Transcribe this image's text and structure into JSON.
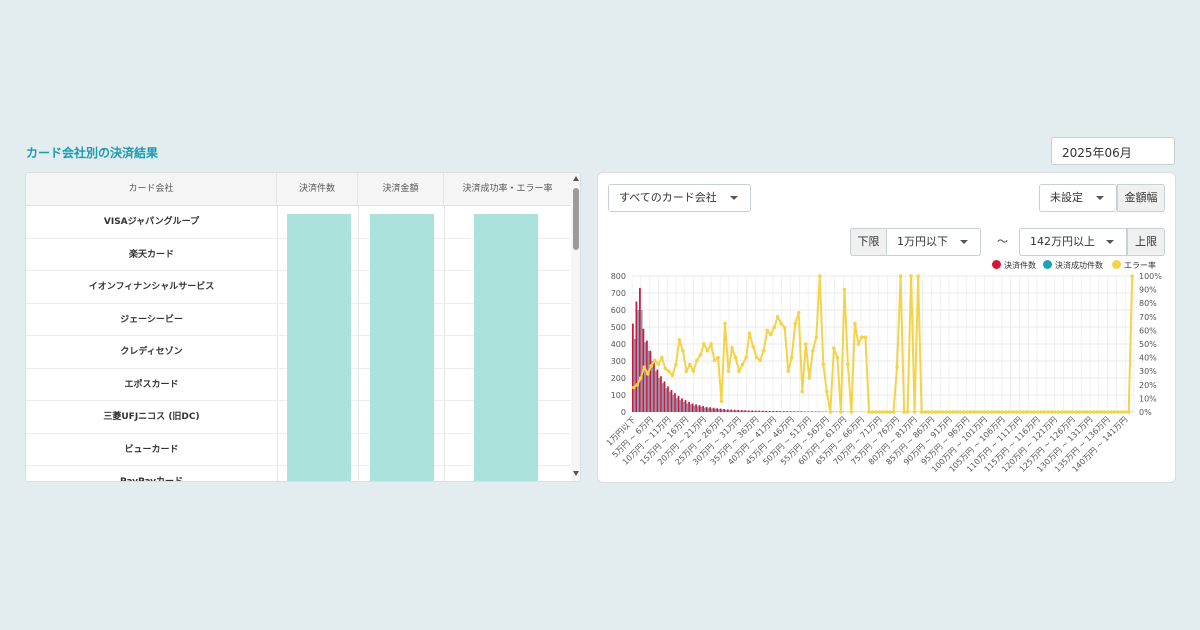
{
  "page": {
    "section_title": "カード会社別の決済結果",
    "month": "2025年06月"
  },
  "table": {
    "headers": [
      "カード会社",
      "決済件数",
      "決済金額",
      "決済成功率・エラー率"
    ],
    "rows": [
      "VISAジャパングループ",
      "楽天カード",
      "イオンフィナンシャルサービス",
      "ジェーシービー",
      "クレディセゾン",
      "エポスカード",
      "三菱UFJニコス (旧DC)",
      "ビューカード",
      "PayPayカード"
    ]
  },
  "filters": {
    "company": "すべてのカード会社",
    "amount_mode": "未設定",
    "amount_btn": "金額幅",
    "lower_label": "下限",
    "lower_value": "1万円以下",
    "tilde": "～",
    "upper_value": "142万円以上",
    "upper_label": "上限"
  },
  "colors": {
    "accent": "#1a9bb0",
    "count": "#d0163a",
    "success": "#1aa3b5",
    "error": "#f2d34a",
    "bar_cell": "#ace2dc"
  },
  "chart_data": {
    "type": "bar",
    "legend_position": "top-right",
    "series": [
      {
        "name": "決済件数",
        "type": "bar",
        "axis": "left"
      },
      {
        "name": "決済成功件数",
        "type": "bar",
        "axis": "left"
      },
      {
        "name": "エラー率",
        "type": "line",
        "axis": "right"
      }
    ],
    "y_left": {
      "ylim": [
        0,
        800
      ],
      "ticks": [
        "0",
        "100",
        "200",
        "300",
        "400",
        "500",
        "600",
        "700",
        "800"
      ]
    },
    "y_right": {
      "ylim": [
        0,
        100
      ],
      "ticks": [
        "0%",
        "10%",
        "20%",
        "30%",
        "40%",
        "50%",
        "60%",
        "70%",
        "80%",
        "90%",
        "100%"
      ]
    },
    "x_labels": [
      "1万円以下",
      "5万円 ~ 6万円",
      "10万円 ~ 11万円",
      "15万円 ~ 16万円",
      "20万円 ~ 21万円",
      "25万円 ~ 26万円",
      "30万円 ~ 31万円",
      "35万円 ~ 36万円",
      "40万円 ~ 41万円",
      "45万円 ~ 46万円",
      "50万円 ~ 51万円",
      "55万円 ~ 56万円",
      "60万円 ~ 61万円",
      "65万円 ~ 66万円",
      "70万円 ~ 71万円",
      "75万円 ~ 76万円",
      "80万円 ~ 81万円",
      "85万円 ~ 86万円",
      "90万円 ~ 91万円",
      "95万円 ~ 96万円",
      "100万円 ~ 101万円",
      "105万円 ~ 106万円",
      "110万円 ~ 111万円",
      "115万円 ~ 116万円",
      "120万円 ~ 121万円",
      "125万円 ~ 126万円",
      "130万円 ~ 131万円",
      "135万円 ~ 136万円",
      "140万円 ~ 141万円"
    ],
    "count": [
      520,
      650,
      730,
      490,
      420,
      360,
      300,
      250,
      210,
      180,
      150,
      130,
      110,
      95,
      80,
      70,
      60,
      50,
      45,
      40,
      35,
      30,
      28,
      25,
      22,
      20,
      18,
      15,
      14,
      13,
      12,
      11,
      10,
      9,
      9,
      8,
      8,
      7,
      7,
      6,
      6,
      6,
      5,
      5,
      5,
      4,
      4,
      4,
      4,
      3,
      3,
      3,
      3,
      3,
      2,
      2,
      2,
      2,
      2,
      2,
      2,
      1,
      1,
      1,
      1,
      1,
      1,
      1,
      1,
      1,
      1,
      1,
      1,
      1,
      1,
      1,
      1,
      1,
      1,
      1,
      1,
      1,
      1,
      1,
      1,
      1,
      1,
      1,
      1,
      1,
      1,
      1,
      1,
      1,
      1,
      1,
      1,
      1,
      1,
      1,
      1,
      1,
      1,
      1,
      1,
      1,
      1,
      1,
      1,
      1,
      1,
      1,
      1,
      1,
      1,
      1,
      1,
      1,
      1,
      1,
      1,
      1,
      1,
      1,
      1,
      1,
      1,
      1,
      1,
      1,
      1,
      1,
      1,
      1,
      1,
      1,
      1,
      1,
      1,
      1,
      1,
      1,
      1
    ],
    "success": [
      430,
      600,
      600,
      410,
      360,
      300,
      240,
      200,
      170,
      140,
      120,
      100,
      80,
      70,
      60,
      50,
      45,
      38,
      34,
      30,
      25,
      22,
      20,
      18,
      16,
      14,
      12,
      10,
      9,
      9,
      8,
      8,
      7,
      6,
      6,
      5,
      5,
      5,
      4,
      4,
      4,
      4,
      3,
      3,
      3,
      3,
      2,
      2,
      2,
      2,
      2,
      2,
      2,
      1,
      1,
      1,
      1,
      1,
      1,
      1,
      1,
      1,
      1,
      1,
      1,
      1,
      1,
      1,
      1,
      1,
      1,
      1,
      1,
      1,
      1,
      1,
      1,
      1,
      1,
      1,
      1,
      1,
      1,
      1,
      1,
      1,
      1,
      1,
      1,
      1,
      1,
      1,
      1,
      1,
      1,
      1,
      1,
      1,
      1,
      1,
      1,
      1,
      1,
      1,
      1,
      1,
      1,
      1,
      1,
      1,
      1,
      1,
      1,
      1,
      1,
      1,
      1,
      1,
      1,
      1,
      1,
      1,
      1,
      1,
      1,
      1,
      1,
      1,
      1,
      1,
      1,
      1,
      1,
      1,
      1,
      1,
      1,
      1,
      1,
      1,
      1,
      1,
      1
    ],
    "error_rate": [
      18,
      20,
      25,
      33,
      28,
      34,
      38,
      35,
      40,
      32,
      30,
      27,
      35,
      53,
      45,
      30,
      35,
      30,
      38,
      42,
      50,
      45,
      50,
      38,
      40,
      8,
      65,
      30,
      47,
      40,
      30,
      35,
      40,
      58,
      48,
      40,
      38,
      45,
      60,
      57,
      62,
      70,
      65,
      62,
      30,
      40,
      65,
      73,
      15,
      50,
      25,
      45,
      55,
      100,
      35,
      15,
      0,
      47,
      40,
      0,
      90,
      35,
      0,
      65,
      50,
      55,
      55,
      0,
      0,
      0,
      0,
      0,
      0,
      0,
      0,
      33,
      100,
      0,
      0,
      100,
      0,
      100,
      0,
      0,
      0,
      0,
      0,
      0,
      0,
      0,
      0,
      0,
      0,
      0,
      0,
      0,
      0,
      0,
      0,
      0,
      0,
      0,
      0,
      0,
      0,
      0,
      0,
      0,
      0,
      0,
      0,
      0,
      0,
      0,
      0,
      0,
      0,
      0,
      0,
      0,
      0,
      0,
      0,
      0,
      0,
      0,
      0,
      0,
      0,
      0,
      0,
      0,
      0,
      0,
      0,
      0,
      0,
      0,
      0,
      0,
      0,
      0,
      100
    ]
  }
}
